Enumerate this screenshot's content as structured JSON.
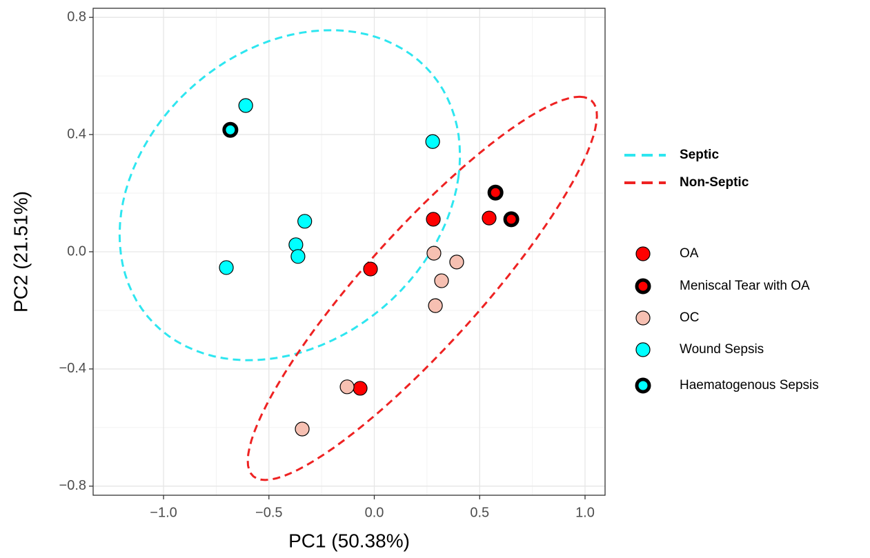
{
  "chart_data": {
    "type": "scatter",
    "xlabel": "PC1 (50.38%)",
    "ylabel": "PC2 (21.51%)",
    "xlim": [
      -1.334,
      1.095
    ],
    "ylim": [
      -0.831,
      0.831
    ],
    "xticks": [
      {
        "value": -1,
        "label": "−1.0"
      },
      {
        "value": -0.5,
        "label": "−0.5"
      },
      {
        "value": 0,
        "label": "0.0"
      },
      {
        "value": 0.5,
        "label": "0.5"
      },
      {
        "value": 1,
        "label": "1.0"
      }
    ],
    "yticks": [
      {
        "value": -0.8,
        "label": "−0.8"
      },
      {
        "value": -0.4,
        "label": "−0.4"
      },
      {
        "value": 0,
        "label": "0.0"
      },
      {
        "value": 0.4,
        "label": "0.4"
      },
      {
        "value": 0.8,
        "label": "0.8"
      }
    ],
    "grid": true,
    "ellipses": [
      {
        "name": "Septic",
        "color": "#2ee6f0",
        "center": [
          -0.401,
          0.193
        ],
        "axis1": [
          0.8,
          0.06
        ],
        "axis2": [
          0.11,
          0.56
        ]
      },
      {
        "name": "Non-Septic",
        "color": "#ee2222",
        "center": [
          0.228,
          -0.125
        ],
        "axis1": [
          0.746,
          0.654
        ],
        "axis2": [
          0.36,
          0
        ]
      }
    ],
    "series": [
      {
        "name": "OA",
        "color": "#ff0000",
        "outline": "thin",
        "x": [
          0.28,
          -0.018,
          0.545,
          -0.067
        ],
        "y": [
          0.111,
          -0.059,
          0.115,
          -0.466
        ]
      },
      {
        "name": "Meniscal Tear with OA",
        "color": "#ff0000",
        "outline": "thick",
        "x": [
          0.575,
          0.65
        ],
        "y": [
          0.202,
          0.111
        ]
      },
      {
        "name": "OC",
        "color": "#f6c0b2",
        "outline": "thin",
        "x": [
          0.283,
          0.391,
          0.319,
          0.29,
          -0.129,
          -0.342
        ],
        "y": [
          -0.005,
          -0.035,
          -0.099,
          -0.184,
          -0.461,
          -0.605
        ]
      },
      {
        "name": "Wound Sepsis",
        "color": "#00ffff",
        "outline": "thin",
        "x": [
          -0.61,
          0.277,
          -0.33,
          -0.372,
          -0.362,
          -0.702
        ],
        "y": [
          0.499,
          0.376,
          0.104,
          0.024,
          -0.016,
          -0.054
        ]
      },
      {
        "name": "Haematogenous Sepsis",
        "color": "#00ffff",
        "outline": "thick",
        "x": [
          -0.683
        ],
        "y": [
          0.416
        ]
      }
    ]
  }
}
